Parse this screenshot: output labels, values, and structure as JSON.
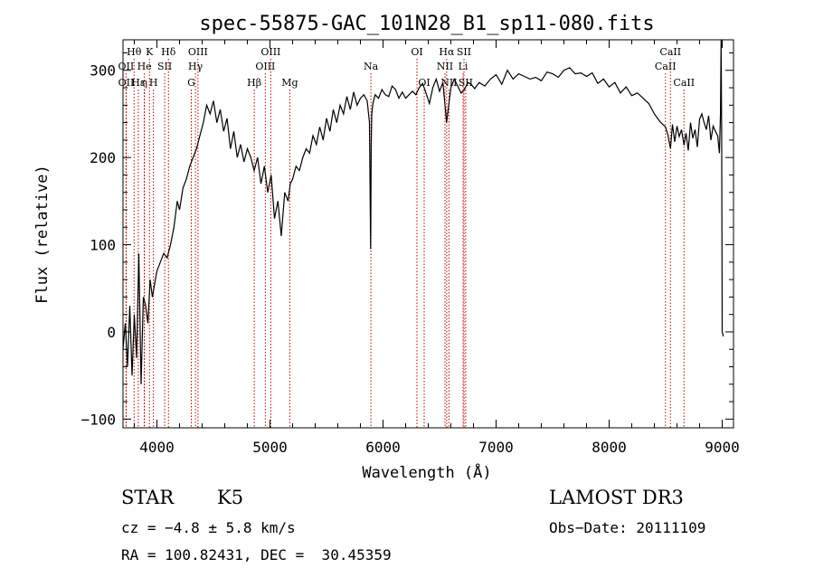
{
  "chart_data": {
    "type": "line",
    "title": "spec-55875-GAC_101N28_B1_sp11-080.fits",
    "xlabel": "Wavelength (Å)",
    "ylabel": "Flux (relative)",
    "xlim": [
      3700,
      9100
    ],
    "ylim": [
      -110,
      335
    ],
    "xticks": [
      4000,
      5000,
      6000,
      7000,
      8000,
      9000
    ],
    "yticks": [
      -100,
      0,
      100,
      200,
      300
    ],
    "xtick_labels": [
      "4000",
      "5000",
      "6000",
      "7000",
      "8000",
      "9000"
    ],
    "ytick_labels": [
      "−100",
      "0",
      "100",
      "200",
      "300"
    ],
    "series": [
      {
        "name": "spectrum",
        "x": [
          3700,
          3720,
          3740,
          3760,
          3780,
          3800,
          3820,
          3840,
          3860,
          3880,
          3900,
          3920,
          3940,
          3960,
          3980,
          4000,
          4030,
          4060,
          4090,
          4120,
          4150,
          4180,
          4200,
          4230,
          4260,
          4290,
          4320,
          4350,
          4380,
          4410,
          4440,
          4470,
          4500,
          4530,
          4560,
          4590,
          4620,
          4650,
          4680,
          4710,
          4740,
          4770,
          4800,
          4830,
          4860,
          4890,
          4920,
          4950,
          4980,
          5010,
          5040,
          5070,
          5100,
          5130,
          5160,
          5180,
          5200,
          5230,
          5260,
          5290,
          5320,
          5350,
          5380,
          5410,
          5440,
          5470,
          5500,
          5530,
          5560,
          5590,
          5620,
          5650,
          5680,
          5710,
          5740,
          5770,
          5800,
          5830,
          5860,
          5880,
          5890,
          5895,
          5900,
          5910,
          5930,
          5960,
          5990,
          6020,
          6050,
          6080,
          6110,
          6140,
          6170,
          6200,
          6230,
          6260,
          6290,
          6320,
          6350,
          6380,
          6410,
          6440,
          6470,
          6500,
          6530,
          6562,
          6600,
          6630,
          6660,
          6690,
          6720,
          6750,
          6780,
          6810,
          6850,
          6900,
          6950,
          7000,
          7050,
          7100,
          7150,
          7200,
          7250,
          7300,
          7350,
          7400,
          7450,
          7500,
          7550,
          7600,
          7650,
          7700,
          7750,
          7800,
          7850,
          7900,
          7950,
          8000,
          8050,
          8100,
          8150,
          8200,
          8250,
          8300,
          8350,
          8400,
          8450,
          8498,
          8520,
          8542,
          8560,
          8580,
          8600,
          8620,
          8640,
          8662,
          8680,
          8700,
          8720,
          8740,
          8760,
          8780,
          8800,
          8820,
          8840,
          8860,
          8880,
          8900,
          8920,
          8940,
          8960,
          8975,
          8985,
          8990,
          8995,
          9000,
          9010
        ],
        "y": [
          -20,
          10,
          -40,
          30,
          -50,
          20,
          -30,
          90,
          -60,
          40,
          30,
          10,
          60,
          40,
          55,
          70,
          80,
          90,
          85,
          100,
          120,
          150,
          140,
          165,
          175,
          190,
          200,
          210,
          225,
          240,
          260,
          250,
          265,
          240,
          255,
          230,
          245,
          210,
          230,
          200,
          215,
          195,
          210,
          200,
          185,
          200,
          170,
          190,
          160,
          180,
          130,
          150,
          110,
          160,
          150,
          170,
          175,
          190,
          185,
          200,
          210,
          205,
          225,
          215,
          235,
          220,
          245,
          230,
          255,
          240,
          260,
          250,
          270,
          255,
          275,
          260,
          268,
          272,
          265,
          240,
          95,
          210,
          250,
          262,
          272,
          268,
          278,
          272,
          270,
          282,
          278,
          268,
          275,
          268,
          272,
          276,
          272,
          280,
          285,
          274,
          262,
          280,
          290,
          276,
          286,
          240,
          280,
          290,
          282,
          274,
          278,
          286,
          284,
          279,
          286,
          282,
          290,
          295,
          284,
          300,
          290,
          296,
          293,
          290,
          292,
          288,
          298,
          296,
          292,
          300,
          303,
          296,
          297,
          293,
          297,
          285,
          290,
          281,
          286,
          274,
          281,
          271,
          274,
          268,
          262,
          250,
          241,
          235,
          226,
          210,
          238,
          218,
          236,
          224,
          232,
          214,
          228,
          208,
          240,
          222,
          232,
          212,
          244,
          250,
          240,
          232,
          248,
          220,
          236,
          230,
          225,
          205,
          250,
          338,
          230,
          0,
          -5
        ]
      }
    ],
    "spectral_lines": [
      {
        "label": "Hθ",
        "wavelength": 3798,
        "tier": 1
      },
      {
        "label": "OII",
        "wavelength": 3727,
        "tier": 2
      },
      {
        "label": "OII",
        "wavelength": 3728,
        "tier": 3
      },
      {
        "label": "Hε",
        "wavelength": 3835,
        "tier": 3
      },
      {
        "label": "He",
        "wavelength": 3889,
        "tier": 2
      },
      {
        "label": "η",
        "wavelength": 3889,
        "tier": 3
      },
      {
        "label": "K",
        "wavelength": 3934,
        "tier": 1
      },
      {
        "label": "H",
        "wavelength": 3969,
        "tier": 3
      },
      {
        "label": "SII",
        "wavelength": 4069,
        "tier": 2
      },
      {
        "label": "Hδ",
        "wavelength": 4102,
        "tier": 1
      },
      {
        "label": "OIII",
        "wavelength": 4363,
        "tier": 1
      },
      {
        "label": "Hγ",
        "wavelength": 4341,
        "tier": 2
      },
      {
        "label": "G",
        "wavelength": 4304,
        "tier": 3
      },
      {
        "label": "Hβ",
        "wavelength": 4861,
        "tier": 3
      },
      {
        "label": "OIII",
        "wavelength": 4959,
        "tier": 2
      },
      {
        "label": "OIII",
        "wavelength": 5007,
        "tier": 1
      },
      {
        "label": "Mg",
        "wavelength": 5175,
        "tier": 3
      },
      {
        "label": "Na",
        "wavelength": 5893,
        "tier": 2
      },
      {
        "label": "OI",
        "wavelength": 6300,
        "tier": 1
      },
      {
        "label": "OI",
        "wavelength": 6364,
        "tier": 3
      },
      {
        "label": "Hα",
        "wavelength": 6563,
        "tier": 1
      },
      {
        "label": "NII",
        "wavelength": 6548,
        "tier": 2
      },
      {
        "label": "NII",
        "wavelength": 6583,
        "tier": 3
      },
      {
        "label": "Li",
        "wavelength": 6708,
        "tier": 2
      },
      {
        "label": "SII",
        "wavelength": 6716,
        "tier": 1
      },
      {
        "label": "SII",
        "wavelength": 6731,
        "tier": 3
      },
      {
        "label": "CaII",
        "wavelength": 8542,
        "tier": 1
      },
      {
        "label": "CaII",
        "wavelength": 8498,
        "tier": 2
      },
      {
        "label": "CaII",
        "wavelength": 8662,
        "tier": 3
      }
    ]
  },
  "info": {
    "class_label": "STAR",
    "subclass": "K5",
    "survey": "LAMOST DR3",
    "cz": "cz = −4.8 ± 5.8 km/s",
    "obs_date": "Obs−Date: 20111109",
    "coords": "RA = 100.82431, DEC =  30.45359"
  },
  "colors": {
    "line": "#000000",
    "marker": "#c00000",
    "background": "#ffffff"
  }
}
